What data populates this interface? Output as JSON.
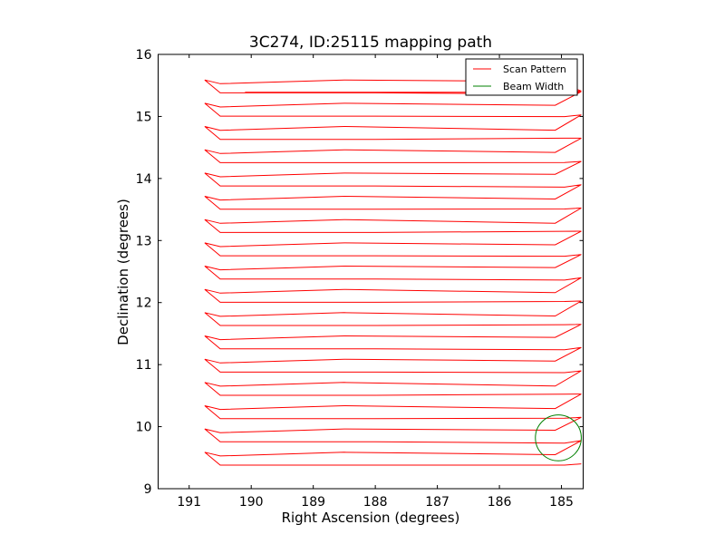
{
  "chart_data": {
    "type": "line",
    "title": "3C274, ID:25115 mapping path",
    "xlabel": "Right Ascension (degrees)",
    "ylabel": "Declination (degrees)",
    "xlim": [
      191.5,
      184.65
    ],
    "ylim": [
      9,
      16
    ],
    "xticks": [
      191,
      190,
      189,
      188,
      187,
      186,
      185
    ],
    "yticks": [
      9,
      10,
      11,
      12,
      13,
      14,
      15,
      16
    ],
    "legend_position": "top-right",
    "series": [
      {
        "name": "Scan Pattern",
        "color": "#ff0000",
        "scan_start_ra": 190.1,
        "scan_start_dec": 15.39,
        "row_dec_start": 9.38,
        "row_spacing": 0.375,
        "row_count": 17,
        "ra_left": 190.5,
        "ra_right": 184.9,
        "ra_turn_left": 190.75,
        "ra_turn_right": 184.68
      },
      {
        "name": "Beam Width",
        "color": "#008000",
        "center_ra": 185.05,
        "center_dec": 9.82,
        "radius_deg": 0.37
      }
    ]
  }
}
